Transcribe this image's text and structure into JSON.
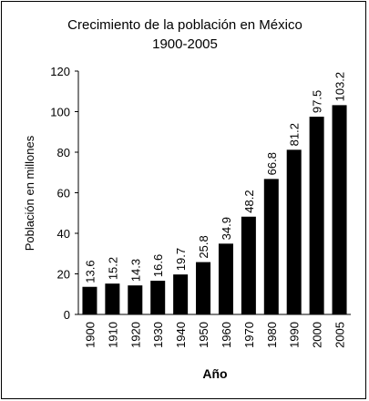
{
  "chart_data": {
    "type": "bar",
    "title": "Crecimiento de la población en México",
    "subtitle": "1900-2005",
    "xlabel": "Año",
    "ylabel": "Población en millones",
    "categories": [
      "1900",
      "1910",
      "1920",
      "1930",
      "1940",
      "1950",
      "1960",
      "1970",
      "1980",
      "1990",
      "2000",
      "2005"
    ],
    "values": [
      13.6,
      15.2,
      14.3,
      16.6,
      19.7,
      25.8,
      34.9,
      48.2,
      66.8,
      81.2,
      97.5,
      103.2
    ],
    "value_labels": [
      "13.6",
      "15.2",
      "14.3",
      "16.6",
      "19.7",
      "25.8",
      "34.9",
      "48.2",
      "66.8",
      "81.2",
      "97.5",
      "103.2"
    ],
    "ylim": [
      0,
      120
    ],
    "yticks": [
      "0",
      "20",
      "40",
      "60",
      "80",
      "100",
      "120"
    ],
    "grid": false,
    "legend": "none",
    "bar_color": "#000000"
  }
}
